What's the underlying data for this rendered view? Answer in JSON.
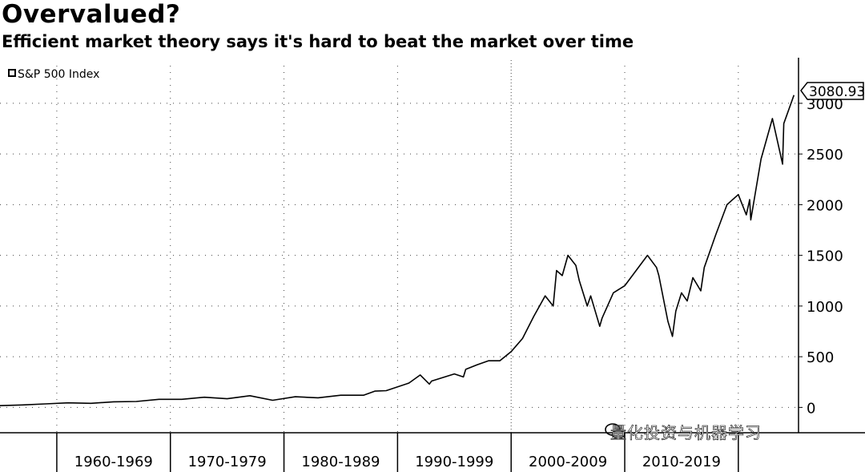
{
  "header": {
    "title": "Overvalued?",
    "subtitle": "Efficient market theory says it's hard to beat the market over time"
  },
  "watermark": {
    "text": "量化投资与机器学习"
  },
  "colors": {
    "line": "#000000",
    "grid": "#444444",
    "background": "#ffffff"
  },
  "chart_data": {
    "type": "line",
    "title": "Overvalued?",
    "subtitle": "Efficient market theory says it's hard to beat the market over time",
    "legend": {
      "entries": [
        "S&P 500 Index"
      ],
      "placement": "top-left"
    },
    "last_value_label": "3080.93",
    "ylim": [
      -250,
      3450
    ],
    "xlim": [
      1950,
      2020.3
    ],
    "y_ticks": [
      0,
      500,
      1000,
      1500,
      2000,
      2500,
      3000
    ],
    "y_tick_labels": [
      "0",
      "500",
      "1000",
      "1500",
      "2000",
      "2500",
      "3000"
    ],
    "x_categories": [
      "1960-1969",
      "1970-1979",
      "1980-1989",
      "1990-1999",
      "2000-2009",
      "2010-2019"
    ],
    "x_dividers": [
      1955,
      1965,
      1975,
      1985,
      1995,
      2005,
      2015
    ],
    "grid": true,
    "series": [
      {
        "name": "S&P 500 Index",
        "x": [
          1950,
          1952,
          1954,
          1956,
          1958,
          1960,
          1962,
          1964,
          1966,
          1968,
          1970,
          1972,
          1974,
          1976,
          1978,
          1980,
          1982,
          1983,
          1984,
          1986,
          1987,
          1987.8,
          1988,
          1990,
          1990.8,
          1991,
          1992,
          1993,
          1994,
          1995,
          1996,
          1997,
          1998,
          1998.7,
          1999,
          1999.5,
          2000,
          2000.7,
          2001,
          2001.7,
          2002,
          2002.8,
          2003,
          2004,
          2005,
          2006,
          2007,
          2007.8,
          2008,
          2008.8,
          2009.2,
          2009.5,
          2010,
          2010.5,
          2011,
          2011.7,
          2012,
          2013,
          2014,
          2015,
          2015.7,
          2016,
          2016.1,
          2017,
          2018,
          2018.9,
          2019,
          2019.9
        ],
        "y": [
          17,
          24,
          35,
          45,
          40,
          55,
          58,
          80,
          80,
          100,
          85,
          115,
          70,
          105,
          95,
          120,
          120,
          160,
          165,
          240,
          320,
          230,
          260,
          330,
          300,
          375,
          420,
          460,
          460,
          550,
          680,
          900,
          1100,
          1000,
          1350,
          1300,
          1500,
          1400,
          1250,
          1000,
          1100,
          800,
          880,
          1130,
          1200,
          1350,
          1500,
          1380,
          1300,
          850,
          700,
          950,
          1130,
          1050,
          1280,
          1150,
          1380,
          1700,
          2000,
          2100,
          1900,
          2050,
          1850,
          2450,
          2850,
          2400,
          2800,
          3080.93
        ]
      }
    ]
  }
}
